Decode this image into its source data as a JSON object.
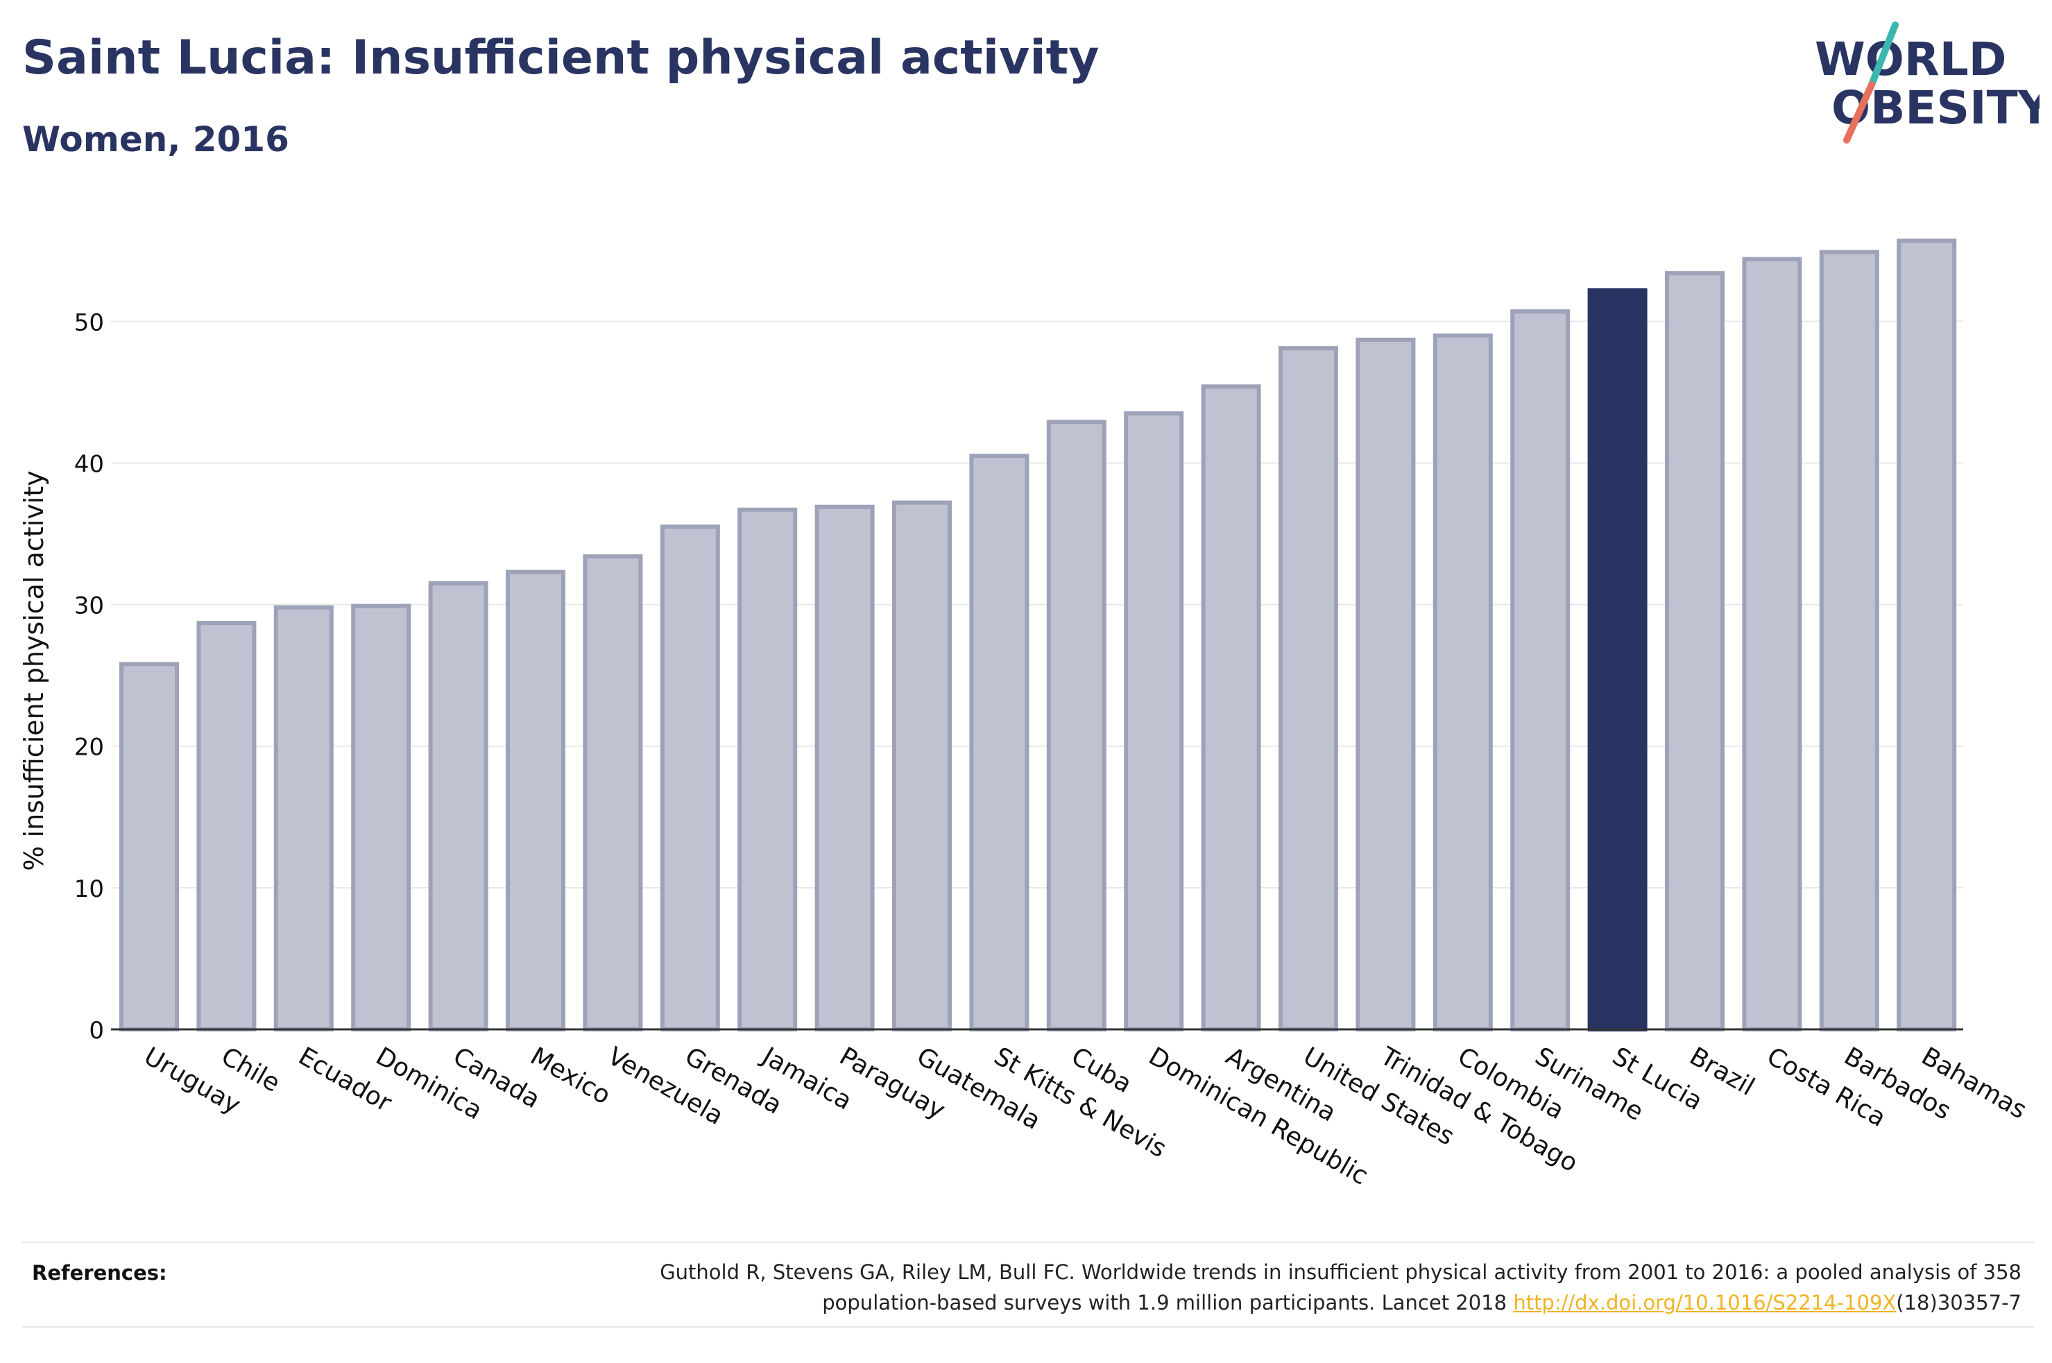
{
  "header": {
    "title": "Saint Lucia: Insufficient physical activity",
    "subtitle": "Women, 2016"
  },
  "logo": {
    "line1": "WORLD",
    "line2": "OBESITY",
    "colors": {
      "text": "#2a3462",
      "slash_teal": "#3ab7ae",
      "slash_coral": "#e8705e"
    }
  },
  "chart_data": {
    "type": "bar",
    "categories": [
      "Uruguay",
      "Chile",
      "Ecuador",
      "Dominica",
      "Canada",
      "Mexico",
      "Venezuela",
      "Grenada",
      "Jamaica",
      "Paraguay",
      "Guatemala",
      "St Kitts & Nevis",
      "Cuba",
      "Dominican Republic",
      "Argentina",
      "United States",
      "Trinidad & Tobago",
      "Colombia",
      "Suriname",
      "St Lucia",
      "Brazil",
      "Costa Rica",
      "Barbados",
      "Bahamas"
    ],
    "values": [
      25.8,
      28.7,
      29.8,
      29.9,
      31.5,
      32.3,
      33.4,
      35.5,
      36.7,
      36.9,
      37.2,
      40.5,
      42.9,
      43.5,
      45.4,
      48.1,
      48.7,
      49.0,
      50.7,
      52.2,
      53.4,
      54.4,
      54.9,
      55.7
    ],
    "highlight": "St Lucia",
    "title": "Saint Lucia: Insufficient physical activity",
    "subtitle": "Women, 2016",
    "xlabel": "",
    "ylabel": "% insufficient physical activity",
    "ylim": [
      0,
      58
    ],
    "yticks": [
      0,
      10,
      20,
      30,
      40,
      50
    ],
    "grid": true,
    "colors": {
      "bar_fill": "#bfc2d0",
      "bar_stroke": "#9da2b8",
      "highlight": "#2a3462",
      "grid": "#e8e8e8"
    }
  },
  "footer": {
    "references_label": "References:",
    "reference_line1": "Guthold R, Stevens GA, Riley LM, Bull FC. Worldwide trends in insufficient physical activity from 2001 to 2016: a pooled analysis of 358",
    "reference_line2_pre": "population-based surveys with 1.9 million participants. Lancet 2018 ",
    "reference_link": "http://dx.doi.org/10.1016/S2214-109X",
    "reference_line2_post": "(18)30357-7"
  }
}
